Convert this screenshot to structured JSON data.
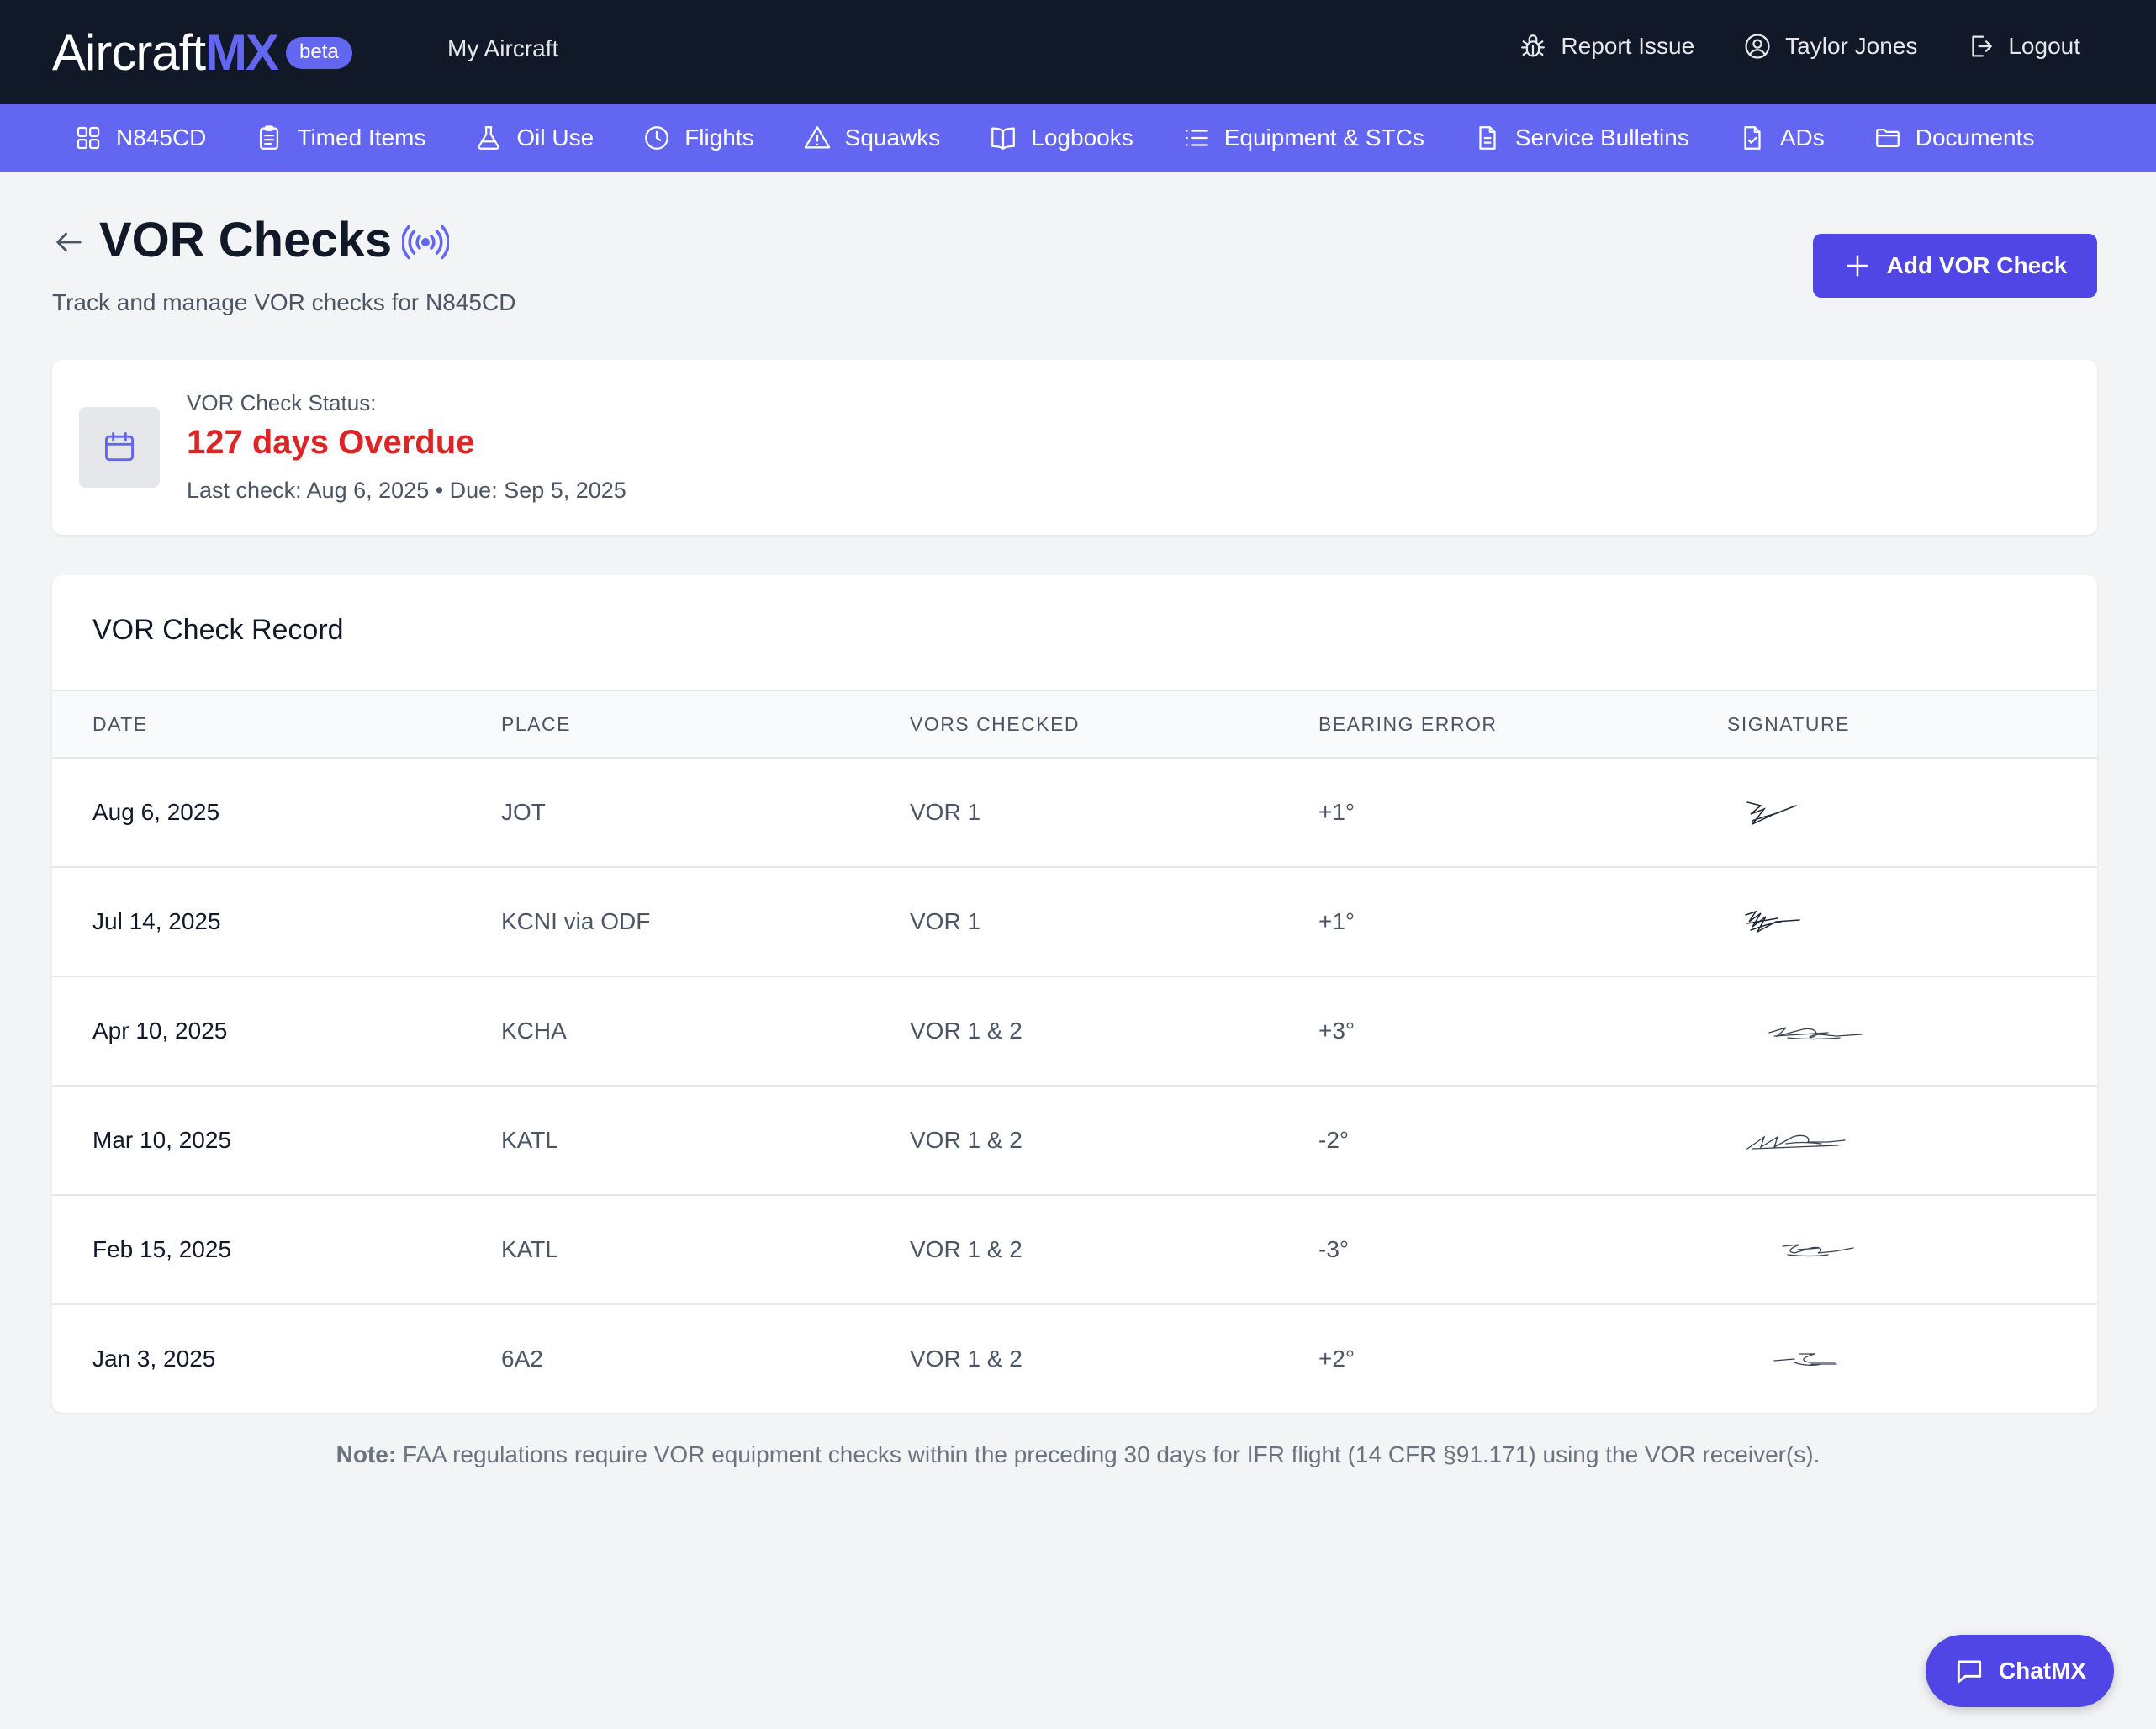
{
  "header": {
    "logo_word": "Aircraft",
    "logo_mx": "MX",
    "beta_label": "beta",
    "my_aircraft": "My Aircraft",
    "report_issue": "Report Issue",
    "user_name": "Taylor Jones",
    "logout": "Logout"
  },
  "nav": {
    "items": [
      {
        "label": "N845CD",
        "icon": "grid-icon"
      },
      {
        "label": "Timed Items",
        "icon": "clipboard-icon"
      },
      {
        "label": "Oil Use",
        "icon": "flask-icon"
      },
      {
        "label": "Flights",
        "icon": "clock-icon"
      },
      {
        "label": "Squawks",
        "icon": "warning-icon"
      },
      {
        "label": "Logbooks",
        "icon": "book-icon"
      },
      {
        "label": "Equipment & STCs",
        "icon": "list-icon"
      },
      {
        "label": "Service Bulletins",
        "icon": "document-icon"
      },
      {
        "label": "ADs",
        "icon": "document-check-icon"
      },
      {
        "label": "Documents",
        "icon": "folder-icon"
      }
    ]
  },
  "page": {
    "title": "VOR Checks",
    "subtitle": "Track and manage VOR checks for N845CD",
    "add_button": "Add VOR Check"
  },
  "status": {
    "label": "VOR Check Status:",
    "value": "127 days Overdue",
    "dates": "Last check: Aug 6, 2025 • Due: Sep 5, 2025",
    "value_color": "#dc2626"
  },
  "record": {
    "title": "VOR Check Record",
    "columns": [
      "DATE",
      "PLACE",
      "VORS CHECKED",
      "BEARING ERROR",
      "SIGNATURE"
    ],
    "rows": [
      {
        "date": "Aug 6, 2025",
        "place": "JOT",
        "vors": "VOR 1",
        "error": "+1°"
      },
      {
        "date": "Jul 14, 2025",
        "place": "KCNI via ODF",
        "vors": "VOR 1",
        "error": "+1°"
      },
      {
        "date": "Apr 10, 2025",
        "place": "KCHA",
        "vors": "VOR 1 & 2",
        "error": "+3°"
      },
      {
        "date": "Mar 10, 2025",
        "place": "KATL",
        "vors": "VOR 1 & 2",
        "error": "-2°"
      },
      {
        "date": "Feb 15, 2025",
        "place": "KATL",
        "vors": "VOR 1 & 2",
        "error": "-3°"
      },
      {
        "date": "Jan 3, 2025",
        "place": "6A2",
        "vors": "VOR 1 & 2",
        "error": "+2°"
      }
    ]
  },
  "note": {
    "bold": "Note:",
    "text": " FAA regulations require VOR equipment checks within the preceding 30 days for IFR flight (14 CFR §91.171) using the VOR receiver(s)."
  },
  "chat": {
    "label": "ChatMX"
  },
  "colors": {
    "accent": "#6366f1",
    "button": "#4f46e5",
    "topbar": "#111827"
  }
}
